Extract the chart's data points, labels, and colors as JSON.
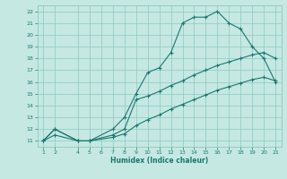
{
  "xlabel": "Humidex (Indice chaleur)",
  "bg_color": "#c5e8e2",
  "grid_color": "#8ec8c0",
  "line_color": "#1a7870",
  "line1_x": [
    1,
    2,
    4,
    5,
    7,
    8,
    9,
    10,
    11,
    12,
    13,
    14,
    15,
    16,
    17,
    18,
    19,
    20,
    21
  ],
  "line1_y": [
    11,
    12,
    11,
    11,
    12,
    13,
    15,
    16.8,
    17.2,
    18.5,
    21,
    21.5,
    21.5,
    22,
    21,
    20.5,
    19,
    18,
    16
  ],
  "line2_x": [
    1,
    2,
    4,
    5,
    7,
    8,
    9,
    10,
    11,
    12,
    13,
    14,
    15,
    16,
    17,
    18,
    19,
    20,
    21
  ],
  "line2_y": [
    11,
    12,
    11,
    11,
    11.5,
    12,
    14.5,
    14.8,
    15.2,
    15.7,
    16.1,
    16.6,
    17.0,
    17.4,
    17.7,
    18.0,
    18.3,
    18.5,
    18
  ],
  "line3_x": [
    1,
    2,
    4,
    5,
    7,
    8,
    9,
    10,
    11,
    12,
    13,
    14,
    15,
    16,
    17,
    18,
    19,
    20,
    21
  ],
  "line3_y": [
    11,
    11.5,
    11,
    11,
    11.3,
    11.6,
    12.3,
    12.8,
    13.2,
    13.7,
    14.1,
    14.5,
    14.9,
    15.3,
    15.6,
    15.9,
    16.2,
    16.4,
    16.1
  ],
  "xlim": [
    0.5,
    21.5
  ],
  "ylim": [
    10.5,
    22.5
  ],
  "xticks": [
    1,
    2,
    4,
    5,
    6,
    7,
    8,
    9,
    10,
    11,
    12,
    13,
    14,
    15,
    16,
    17,
    18,
    19,
    20,
    21
  ],
  "yticks": [
    11,
    12,
    13,
    14,
    15,
    16,
    17,
    18,
    19,
    20,
    21,
    22
  ]
}
